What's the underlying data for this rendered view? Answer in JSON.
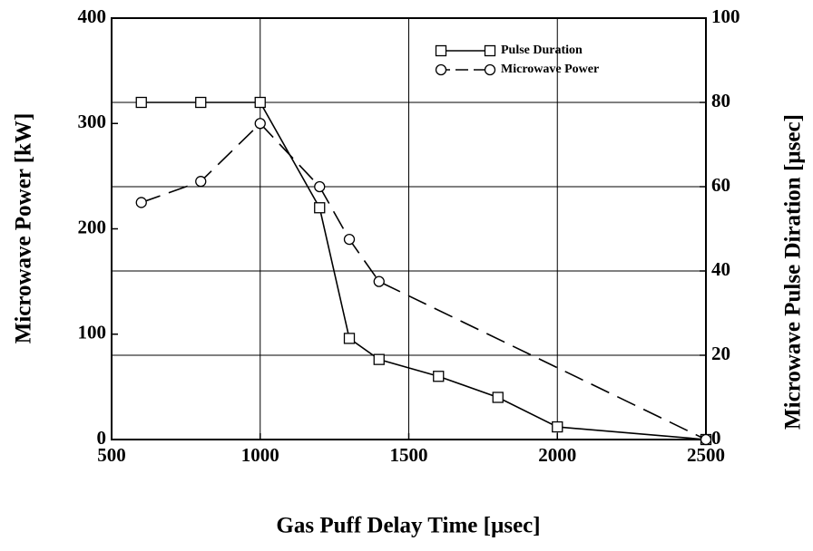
{
  "chart_data": {
    "type": "line",
    "x_label": "Gas Puff Delay Time [µsec]",
    "y_label": "Microwave Power [kW]",
    "y2_label": "Microwave Pulse Diration [µsec]",
    "x": [
      600,
      800,
      1000,
      1200,
      1300,
      1400,
      1600,
      1800,
      2000,
      2500
    ],
    "series": [
      {
        "name": "Pulse Duration",
        "color": "#000000",
        "axis": "y2",
        "marker": "square",
        "linestyle": "solid",
        "values": [
          80,
          80,
          80,
          55,
          24,
          19,
          15,
          10,
          3,
          0
        ]
      },
      {
        "name": "Microwave Power",
        "color": "#000000",
        "axis": "y",
        "marker": "circle",
        "linestyle": "dashed",
        "values": [
          225,
          245,
          300,
          240,
          190,
          150,
          null,
          null,
          null,
          0
        ]
      }
    ],
    "xlim": [
      500,
      2500
    ],
    "xticks": [
      500,
      1000,
      1500,
      2000,
      2500
    ],
    "ylim": [
      0,
      400
    ],
    "yticks": [
      0,
      100,
      200,
      300,
      400
    ],
    "y2lim": [
      0,
      100
    ],
    "y2ticks": [
      0,
      20,
      40,
      60,
      80,
      100
    ],
    "grid": true,
    "legend": "upper right"
  }
}
